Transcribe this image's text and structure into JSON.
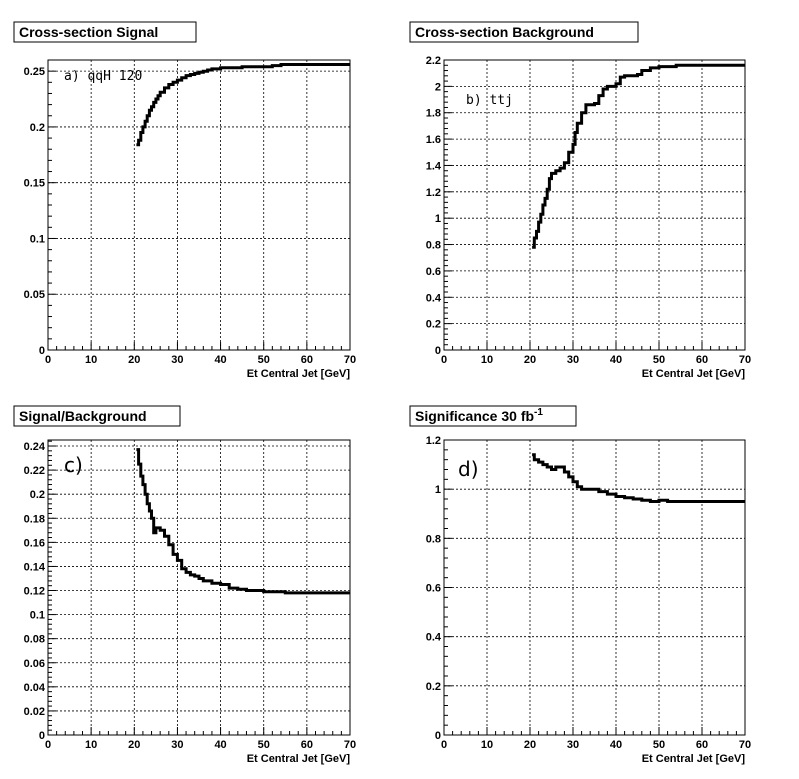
{
  "chart_data": [
    {
      "type": "line",
      "step": true,
      "title": "Cross-section Signal",
      "xlabel": "Et Central Jet [GeV]",
      "ylabel": "",
      "xlim": [
        0,
        70
      ],
      "ylim": [
        0,
        0.26
      ],
      "xticks": [
        0,
        10,
        20,
        30,
        40,
        50,
        60,
        70
      ],
      "yticks": [
        0,
        0.05,
        0.1,
        0.15,
        0.2,
        0.25
      ],
      "ytick_labels": [
        "0",
        "0.05",
        "0.1",
        "0.15",
        "0.2",
        "0.25"
      ],
      "grid": true,
      "annotation": "a)  qqH 120",
      "x": [
        20.5,
        21,
        21.5,
        22,
        22.5,
        23,
        23.5,
        24,
        24.5,
        25,
        25.5,
        26,
        27,
        28,
        29,
        30,
        31,
        32,
        33,
        34,
        35,
        36,
        37,
        38,
        40,
        42,
        45,
        48,
        50,
        52,
        54,
        70
      ],
      "y": [
        0.184,
        0.188,
        0.195,
        0.2,
        0.205,
        0.21,
        0.215,
        0.218,
        0.222,
        0.225,
        0.228,
        0.231,
        0.235,
        0.238,
        0.24,
        0.242,
        0.244,
        0.246,
        0.247,
        0.248,
        0.249,
        0.25,
        0.251,
        0.252,
        0.253,
        0.253,
        0.254,
        0.254,
        0.254,
        0.255,
        0.256,
        0.256
      ]
    },
    {
      "type": "line",
      "step": true,
      "title": "Cross-section Background",
      "xlabel": "Et Central Jet [GeV]",
      "ylabel": "",
      "xlim": [
        0,
        70
      ],
      "ylim": [
        0,
        2.2
      ],
      "xticks": [
        0,
        10,
        20,
        30,
        40,
        50,
        60,
        70
      ],
      "yticks": [
        0,
        0.2,
        0.4,
        0.6,
        0.8,
        1,
        1.2,
        1.4,
        1.6,
        1.8,
        2,
        2.2
      ],
      "ytick_labels": [
        "0",
        "0.2",
        "0.4",
        "0.6",
        "0.8",
        "1",
        "1.2",
        "1.4",
        "1.6",
        "1.8",
        "2",
        "2.2"
      ],
      "grid": true,
      "annotation": "b)  ttj",
      "x": [
        20.5,
        21,
        21.5,
        22,
        22.5,
        23,
        23.5,
        24,
        24.5,
        25,
        26,
        27,
        28,
        29,
        30,
        30.5,
        31,
        32,
        33,
        35,
        36,
        37,
        38,
        40,
        41,
        42,
        45,
        46,
        48,
        50,
        52,
        54,
        56,
        70
      ],
      "y": [
        0.78,
        0.85,
        0.9,
        0.97,
        1.03,
        1.1,
        1.15,
        1.22,
        1.3,
        1.34,
        1.36,
        1.38,
        1.42,
        1.5,
        1.56,
        1.65,
        1.72,
        1.8,
        1.86,
        1.87,
        1.93,
        1.98,
        2.0,
        2.02,
        2.07,
        2.08,
        2.09,
        2.12,
        2.14,
        2.15,
        2.15,
        2.16,
        2.16,
        2.16
      ]
    },
    {
      "type": "line",
      "step": true,
      "title": "Signal/Background",
      "xlabel": "Et Central Jet [GeV]",
      "ylabel": "",
      "xlim": [
        0,
        70
      ],
      "ylim": [
        0,
        0.245
      ],
      "xticks": [
        0,
        10,
        20,
        30,
        40,
        50,
        60,
        70
      ],
      "yticks": [
        0,
        0.02,
        0.04,
        0.06,
        0.08,
        0.1,
        0.12,
        0.14,
        0.16,
        0.18,
        0.2,
        0.22,
        0.24
      ],
      "ytick_labels": [
        "0",
        "0.02",
        "0.04",
        "0.06",
        "0.08",
        "0.1",
        "0.12",
        "0.14",
        "0.16",
        "0.18",
        "0.2",
        "0.22",
        "0.24"
      ],
      "grid": true,
      "annotation": "c)",
      "x": [
        20.5,
        21,
        21.5,
        22,
        22.5,
        23,
        23.5,
        24,
        24.5,
        25,
        26,
        27,
        28,
        29,
        30,
        31,
        32,
        33,
        34,
        35,
        36,
        38,
        40,
        42,
        44,
        46,
        48,
        50,
        52,
        55,
        60,
        70
      ],
      "y": [
        0.237,
        0.225,
        0.215,
        0.208,
        0.2,
        0.192,
        0.186,
        0.18,
        0.168,
        0.172,
        0.17,
        0.165,
        0.158,
        0.15,
        0.145,
        0.138,
        0.135,
        0.133,
        0.132,
        0.13,
        0.128,
        0.126,
        0.125,
        0.122,
        0.121,
        0.12,
        0.12,
        0.119,
        0.119,
        0.118,
        0.118,
        0.118
      ]
    },
    {
      "type": "line",
      "step": true,
      "title": "Significance 30 fb",
      "title_superscript": "-1",
      "xlabel": "Et Central Jet [GeV]",
      "ylabel": "",
      "xlim": [
        0,
        70
      ],
      "ylim": [
        0,
        1.2
      ],
      "xticks": [
        0,
        10,
        20,
        30,
        40,
        50,
        60,
        70
      ],
      "yticks": [
        0,
        0.2,
        0.4,
        0.6,
        0.8,
        1,
        1.2
      ],
      "ytick_labels": [
        "0",
        "0.2",
        "0.4",
        "0.6",
        "0.8",
        "1",
        "1.2"
      ],
      "grid": true,
      "annotation": "d)",
      "x": [
        20.5,
        21,
        22,
        23,
        24,
        25,
        26,
        28,
        29,
        30,
        31,
        32,
        34,
        36,
        38,
        40,
        42,
        44,
        46,
        48,
        50,
        52,
        55,
        60,
        70
      ],
      "y": [
        1.14,
        1.12,
        1.11,
        1.1,
        1.09,
        1.08,
        1.09,
        1.07,
        1.05,
        1.03,
        1.01,
        1.0,
        1.0,
        0.99,
        0.98,
        0.97,
        0.965,
        0.96,
        0.955,
        0.95,
        0.955,
        0.95,
        0.95,
        0.95,
        0.95
      ]
    }
  ]
}
